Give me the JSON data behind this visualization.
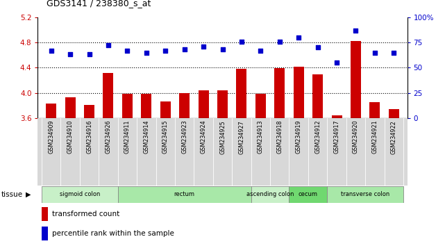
{
  "title": "GDS3141 / 238380_s_at",
  "samples": [
    "GSM234909",
    "GSM234910",
    "GSM234916",
    "GSM234926",
    "GSM234911",
    "GSM234914",
    "GSM234915",
    "GSM234923",
    "GSM234924",
    "GSM234925",
    "GSM234927",
    "GSM234913",
    "GSM234918",
    "GSM234919",
    "GSM234912",
    "GSM234917",
    "GSM234920",
    "GSM234921",
    "GSM234922"
  ],
  "bar_values": [
    3.83,
    3.93,
    3.81,
    4.32,
    3.99,
    3.99,
    3.86,
    4.0,
    4.04,
    4.04,
    4.38,
    3.98,
    4.39,
    4.42,
    4.29,
    3.64,
    4.82,
    3.85,
    3.74
  ],
  "dot_values": [
    67,
    63,
    63,
    72,
    67,
    65,
    67,
    68,
    71,
    68,
    76,
    67,
    76,
    80,
    70,
    55,
    87,
    65,
    65
  ],
  "ylim_left": [
    3.6,
    5.2
  ],
  "ylim_right": [
    0,
    100
  ],
  "yticks_left": [
    3.6,
    4.0,
    4.4,
    4.8,
    5.2
  ],
  "yticks_right": [
    0,
    25,
    50,
    75,
    100
  ],
  "ytick_labels_left": [
    "3.6",
    "4.0",
    "4.4",
    "4.8",
    "5.2"
  ],
  "ytick_labels_right": [
    "0",
    "25",
    "50",
    "75",
    "100%"
  ],
  "bar_color": "#cc0000",
  "dot_color": "#0000cc",
  "hline_values": [
    4.0,
    4.4,
    4.8
  ],
  "tissue_groups": [
    {
      "label": "sigmoid colon",
      "start": 0,
      "end": 3,
      "color": "#c8f0c8"
    },
    {
      "label": "rectum",
      "start": 4,
      "end": 10,
      "color": "#a8e8a8"
    },
    {
      "label": "ascending colon",
      "start": 11,
      "end": 12,
      "color": "#c8f0c8"
    },
    {
      "label": "cecum",
      "start": 13,
      "end": 14,
      "color": "#70d870"
    },
    {
      "label": "transverse colon",
      "start": 15,
      "end": 18,
      "color": "#a8e8a8"
    }
  ],
  "legend_bar_label": "transformed count",
  "legend_dot_label": "percentile rank within the sample",
  "tissue_label": "tissue",
  "label_bg_color": "#d8d8d8",
  "background_color": "#ffffff"
}
